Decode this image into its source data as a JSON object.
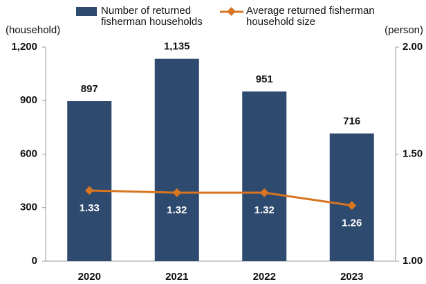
{
  "chart_data": {
    "type": "bar_line",
    "categories": [
      "2020",
      "2021",
      "2022",
      "2023"
    ],
    "series": [
      {
        "name": "Number of returned fisherman households",
        "type": "bar",
        "color": "#2e4a6e",
        "values": [
          897,
          1135,
          951,
          716
        ],
        "value_labels": [
          "897",
          "1,135",
          "951",
          "716"
        ]
      },
      {
        "name": "Average returned fisherman household size",
        "type": "line",
        "axis": "y2",
        "color": "#d9741f",
        "values": [
          1.33,
          1.32,
          1.32,
          1.26
        ]
      }
    ],
    "ylabel": "(household)",
    "y2label": "(person)",
    "ylim": [
      0,
      1200
    ],
    "yticks": [
      0,
      300,
      600,
      900,
      {
        "value": 1200,
        "label": "1,200"
      }
    ],
    "y2lim": [
      1.0,
      2.0
    ],
    "y2ticks": [
      {
        "value": 1.0,
        "label": "1.00"
      },
      {
        "value": 1.5,
        "label": "1.50"
      },
      {
        "value": 2.0,
        "label": "2.00"
      }
    ],
    "grid": false
  }
}
